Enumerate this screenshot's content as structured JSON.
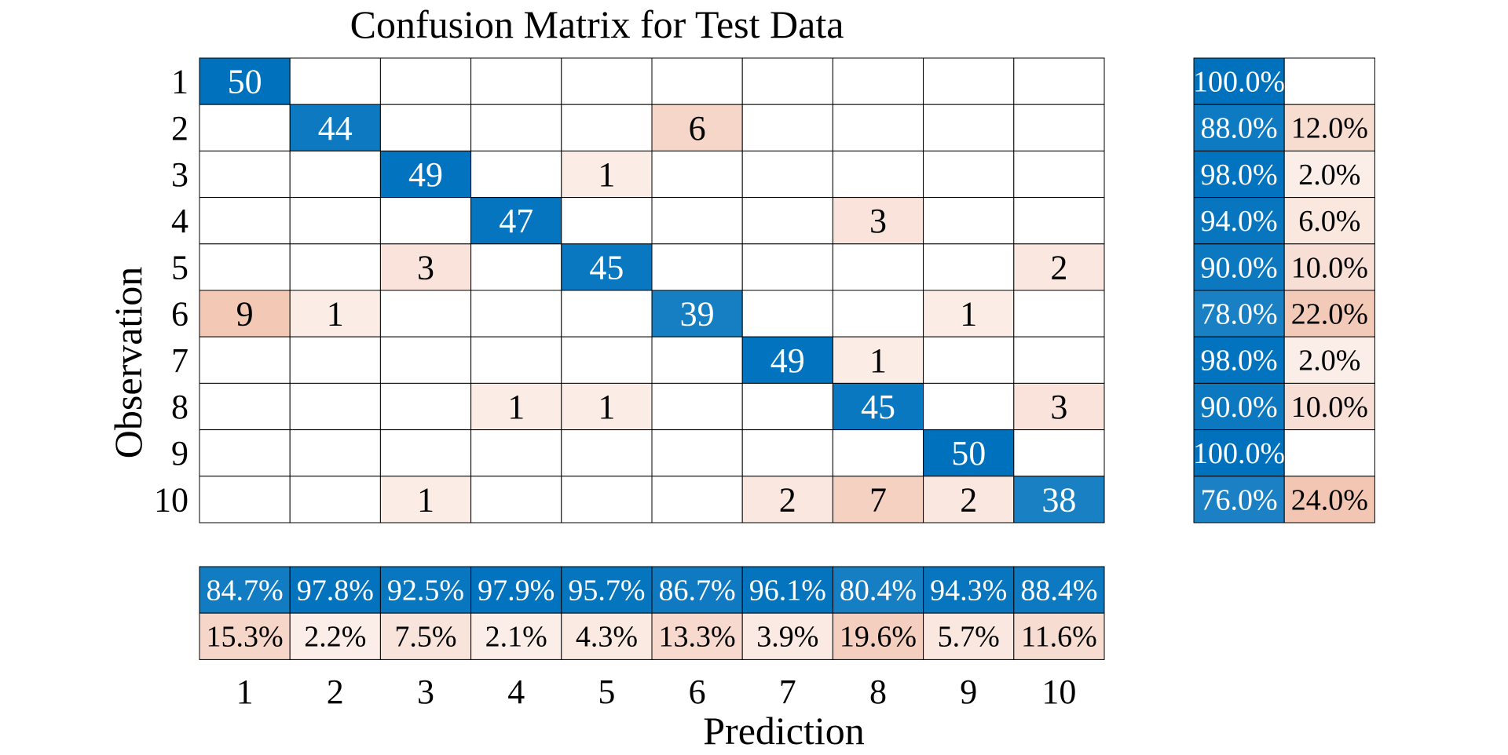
{
  "chart_data": {
    "type": "heatmap",
    "title": "Confusion Matrix for Test Data",
    "xlabel": "Prediction",
    "ylabel": "Observation",
    "x_categories": [
      "1",
      "2",
      "3",
      "4",
      "5",
      "6",
      "7",
      "8",
      "9",
      "10"
    ],
    "y_categories": [
      "1",
      "2",
      "3",
      "4",
      "5",
      "6",
      "7",
      "8",
      "9",
      "10"
    ],
    "matrix": [
      [
        50,
        0,
        0,
        0,
        0,
        0,
        0,
        0,
        0,
        0
      ],
      [
        0,
        44,
        0,
        0,
        0,
        6,
        0,
        0,
        0,
        0
      ],
      [
        0,
        0,
        49,
        0,
        1,
        0,
        0,
        0,
        0,
        0
      ],
      [
        0,
        0,
        0,
        47,
        0,
        0,
        0,
        3,
        0,
        0
      ],
      [
        0,
        0,
        3,
        0,
        45,
        0,
        0,
        0,
        0,
        2
      ],
      [
        9,
        1,
        0,
        0,
        0,
        39,
        0,
        0,
        1,
        0
      ],
      [
        0,
        0,
        0,
        0,
        0,
        0,
        49,
        1,
        0,
        0
      ],
      [
        0,
        0,
        0,
        1,
        1,
        0,
        0,
        45,
        0,
        3
      ],
      [
        0,
        0,
        0,
        0,
        0,
        0,
        0,
        0,
        50,
        0
      ],
      [
        0,
        0,
        1,
        0,
        0,
        0,
        2,
        7,
        2,
        38
      ]
    ],
    "row_summary": {
      "correct": [
        "100.0%",
        "88.0%",
        "98.0%",
        "94.0%",
        "90.0%",
        "78.0%",
        "98.0%",
        "90.0%",
        "100.0%",
        "76.0%"
      ],
      "incorrect": [
        "",
        "12.0%",
        "2.0%",
        "6.0%",
        "10.0%",
        "22.0%",
        "2.0%",
        "10.0%",
        "",
        "24.0%"
      ]
    },
    "column_summary": {
      "correct": [
        "84.7%",
        "97.8%",
        "92.5%",
        "97.9%",
        "95.7%",
        "86.7%",
        "96.1%",
        "80.4%",
        "94.3%",
        "88.4%"
      ],
      "incorrect": [
        "15.3%",
        "2.2%",
        "7.5%",
        "2.1%",
        "4.3%",
        "13.3%",
        "3.9%",
        "19.6%",
        "5.7%",
        "11.6%"
      ]
    },
    "colors": {
      "correct": "#0072bd",
      "incorrect": "#d95319",
      "grid": "#000000",
      "text_dark": "#000000",
      "text_light": "#ffffff"
    }
  }
}
